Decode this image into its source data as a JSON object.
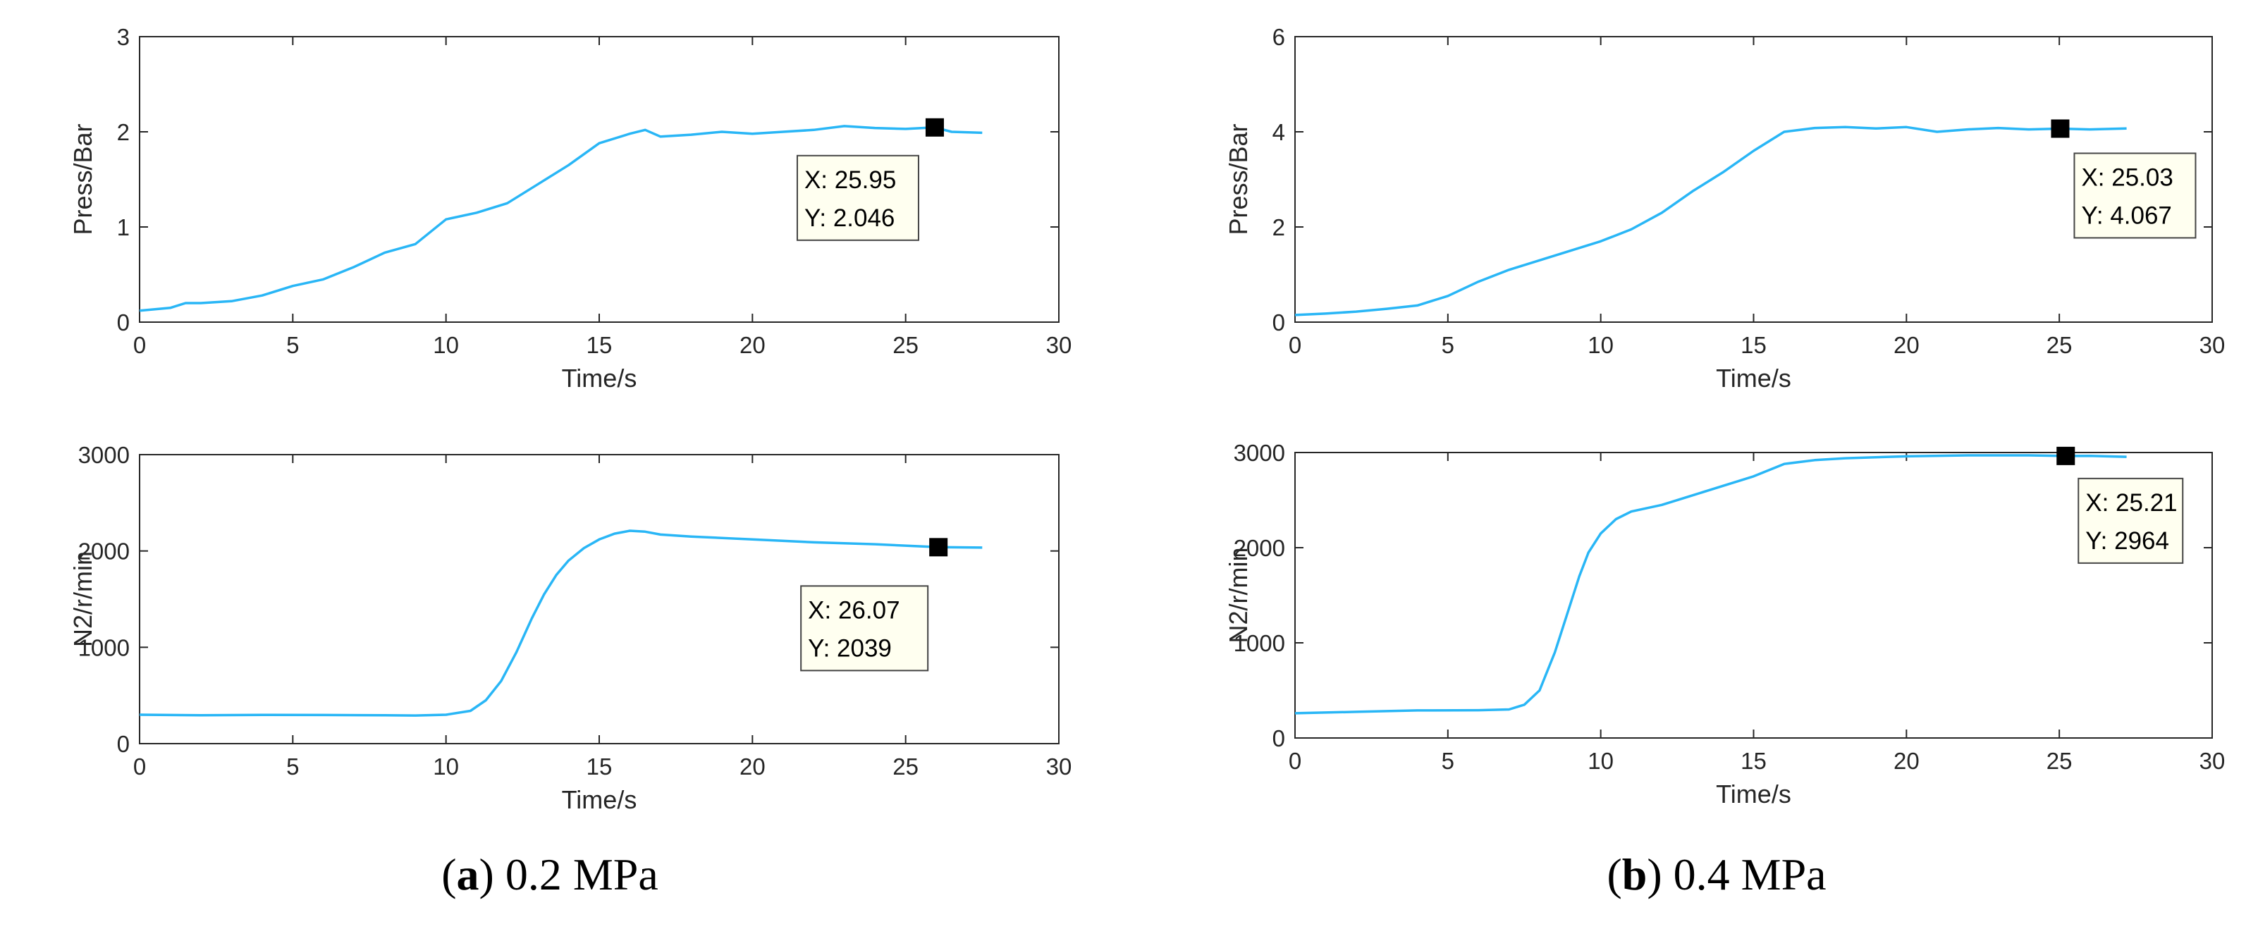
{
  "chart_data": [
    {
      "id": "a-top",
      "type": "line",
      "xlabel": "Time/s",
      "ylabel": "Press/Bar",
      "xlim": [
        0,
        30
      ],
      "ylim": [
        0,
        3
      ],
      "xticks": [
        0,
        5,
        10,
        15,
        20,
        25,
        30
      ],
      "yticks": [
        0,
        1,
        2,
        3
      ],
      "series": [
        {
          "name": "Press",
          "color": "#29b6f6",
          "x": [
            0,
            1,
            1.5,
            2,
            3,
            4,
            5,
            6,
            7,
            8,
            9,
            10,
            11,
            12,
            13,
            14,
            15,
            16,
            16.5,
            17,
            18,
            19,
            20,
            21,
            22,
            23,
            24,
            25,
            25.95,
            26.5,
            27.5
          ],
          "y": [
            0.12,
            0.15,
            0.2,
            0.2,
            0.22,
            0.28,
            0.38,
            0.45,
            0.58,
            0.73,
            0.82,
            1.08,
            1.15,
            1.25,
            1.45,
            1.65,
            1.88,
            1.98,
            2.02,
            1.95,
            1.97,
            2.0,
            1.98,
            2.0,
            2.02,
            2.06,
            2.04,
            2.03,
            2.046,
            2.0,
            1.99
          ]
        }
      ],
      "datatip": {
        "x": 25.95,
        "y": 2.046,
        "x_label": "X: 25.95",
        "y_label": "Y: 2.046"
      }
    },
    {
      "id": "a-bottom",
      "type": "line",
      "xlabel": "Time/s",
      "ylabel": "N2/r/min",
      "xlim": [
        0,
        30
      ],
      "ylim": [
        0,
        3000
      ],
      "xticks": [
        0,
        5,
        10,
        15,
        20,
        25,
        30
      ],
      "yticks": [
        0,
        1000,
        2000,
        3000
      ],
      "series": [
        {
          "name": "N2",
          "color": "#29b6f6",
          "x": [
            0,
            2,
            4,
            6,
            8,
            9,
            10,
            10.8,
            11.3,
            11.8,
            12.3,
            12.8,
            13.2,
            13.6,
            14,
            14.5,
            15,
            15.5,
            16,
            16.5,
            17,
            18,
            20,
            22,
            24,
            26.07,
            27.5
          ],
          "y": [
            300,
            295,
            298,
            297,
            295,
            292,
            300,
            340,
            450,
            650,
            950,
            1300,
            1550,
            1750,
            1900,
            2030,
            2120,
            2180,
            2210,
            2200,
            2170,
            2150,
            2120,
            2090,
            2070,
            2039,
            2035
          ]
        }
      ],
      "datatip": {
        "x": 26.07,
        "y": 2039,
        "x_label": "X: 26.07",
        "y_label": "Y: 2039"
      }
    },
    {
      "id": "b-top",
      "type": "line",
      "xlabel": "Time/s",
      "ylabel": "Press/Bar",
      "xlim": [
        0,
        30
      ],
      "ylim": [
        0,
        6
      ],
      "xticks": [
        0,
        5,
        10,
        15,
        20,
        25,
        30
      ],
      "yticks": [
        0,
        2,
        4,
        6
      ],
      "series": [
        {
          "name": "Press",
          "color": "#29b6f6",
          "x": [
            0,
            1,
            2,
            3,
            4,
            5,
            6,
            7,
            8,
            9,
            10,
            11,
            12,
            13,
            14,
            15,
            16,
            17,
            18,
            19,
            20,
            21,
            22,
            23,
            24,
            25.03,
            26,
            27.2
          ],
          "y": [
            0.15,
            0.18,
            0.22,
            0.28,
            0.35,
            0.55,
            0.85,
            1.1,
            1.3,
            1.5,
            1.7,
            1.95,
            2.3,
            2.75,
            3.15,
            3.6,
            4.0,
            4.08,
            4.1,
            4.07,
            4.1,
            4.0,
            4.05,
            4.08,
            4.05,
            4.067,
            4.05,
            4.07
          ]
        }
      ],
      "datatip": {
        "x": 25.03,
        "y": 4.067,
        "x_label": "X: 25.03",
        "y_label": "Y: 4.067"
      }
    },
    {
      "id": "b-bottom",
      "type": "line",
      "xlabel": "Time/s",
      "ylabel": "N2/r/min",
      "xlim": [
        0,
        30
      ],
      "ylim": [
        0,
        3000
      ],
      "xticks": [
        0,
        5,
        10,
        15,
        20,
        25,
        30
      ],
      "yticks": [
        0,
        1000,
        2000,
        3000
      ],
      "series": [
        {
          "name": "N2",
          "color": "#29b6f6",
          "x": [
            0,
            2,
            4,
            6,
            7,
            7.5,
            8,
            8.5,
            9,
            9.3,
            9.6,
            10,
            10.5,
            11,
            12,
            13,
            14,
            15,
            16,
            17,
            18,
            20,
            22,
            24,
            25.21,
            26,
            27.2
          ],
          "y": [
            260,
            275,
            290,
            292,
            300,
            350,
            500,
            900,
            1400,
            1700,
            1950,
            2150,
            2300,
            2380,
            2450,
            2550,
            2650,
            2750,
            2880,
            2920,
            2940,
            2960,
            2970,
            2970,
            2964,
            2965,
            2955
          ]
        }
      ],
      "datatip": {
        "x": 25.21,
        "y": 2964,
        "x_label": "X: 25.21",
        "y_label": "Y: 2964"
      }
    }
  ],
  "captions": {
    "a": {
      "letter": "a",
      "text": "0.2 MPa"
    },
    "b": {
      "letter": "b",
      "text": "0.4 MPa"
    }
  }
}
